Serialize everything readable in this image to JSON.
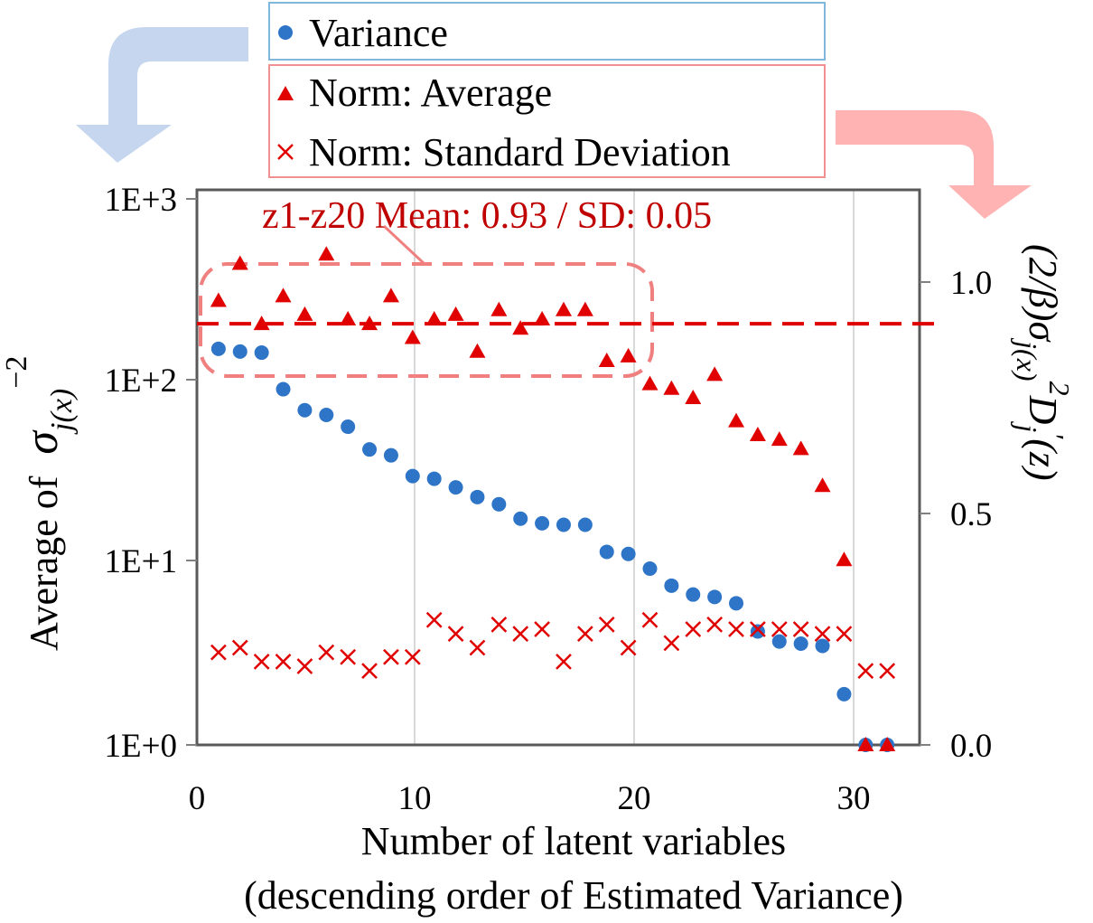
{
  "chart_data": {
    "type": "scatter",
    "xlabel_line1": "Number of latent variables",
    "xlabel_line2": "(descending order of Estimated Variance)",
    "ylabel_left_text": "Average of",
    "ylabel_left_math": "σ_{j(x)}^{-2}",
    "ylabel_right_math": "(2/β)σ_{j(x)}^2 D_j'(z)",
    "xlim": [
      0,
      33.5
    ],
    "x_ticks": [
      0,
      10,
      20,
      30
    ],
    "x_tick_labels": [
      "0",
      "10",
      "20",
      "30"
    ],
    "y_left": {
      "scale": "log",
      "lim": [
        1,
        1000
      ],
      "ticks": [
        1,
        10,
        100,
        1000
      ],
      "tick_labels": [
        "1E+0",
        "1E+1",
        "1E+2",
        "1E+3"
      ]
    },
    "y_right": {
      "scale": "linear",
      "lim": [
        0,
        1.2
      ],
      "ticks": [
        0,
        0.5,
        1.0
      ],
      "tick_labels": [
        "0.0",
        "0.5",
        "1.0"
      ]
    },
    "grid": "vertical",
    "legend": {
      "position": "top",
      "entries": [
        "Variance",
        "Norm: Average",
        "Norm: Standard Deviation"
      ]
    },
    "series": [
      {
        "name": "Variance",
        "axis": "left",
        "marker": "circle",
        "color": "#2e75c8",
        "x": [
          1,
          2,
          3,
          4,
          5,
          6,
          7,
          8,
          9,
          10,
          11,
          12,
          13,
          14,
          15,
          16,
          17,
          18,
          19,
          20,
          21,
          22,
          23,
          24,
          25,
          26,
          27,
          28,
          29,
          30,
          31,
          32
        ],
        "values": [
          150,
          145,
          143,
          90,
          69,
          65,
          56,
          42,
          39,
          30,
          29,
          26,
          23,
          21,
          17.5,
          16.5,
          16.2,
          16.2,
          11.5,
          11.2,
          9.3,
          7.5,
          6.7,
          6.5,
          6,
          4.2,
          3.7,
          3.6,
          3.5,
          1.9,
          1,
          1
        ]
      },
      {
        "name": "Norm: Average",
        "axis": "right",
        "marker": "triangle",
        "color": "#e00000",
        "x": [
          1,
          2,
          3,
          4,
          5,
          6,
          7,
          8,
          9,
          10,
          11,
          12,
          13,
          14,
          15,
          16,
          17,
          18,
          19,
          20,
          21,
          22,
          23,
          24,
          25,
          26,
          27,
          28,
          29,
          30,
          31,
          32
        ],
        "values": [
          0.96,
          1.04,
          0.91,
          0.97,
          0.93,
          1.06,
          0.92,
          0.91,
          0.97,
          0.88,
          0.92,
          0.93,
          0.85,
          0.94,
          0.9,
          0.92,
          0.94,
          0.94,
          0.83,
          0.84,
          0.78,
          0.77,
          0.75,
          0.8,
          0.7,
          0.67,
          0.66,
          0.64,
          0.56,
          0.4,
          0.0,
          0.0
        ]
      },
      {
        "name": "Norm: Standard Deviation",
        "axis": "right",
        "marker": "x",
        "color": "#e00000",
        "x": [
          1,
          2,
          3,
          4,
          5,
          6,
          7,
          8,
          9,
          10,
          11,
          12,
          13,
          14,
          15,
          16,
          17,
          18,
          19,
          20,
          21,
          22,
          23,
          24,
          25,
          26,
          27,
          28,
          29,
          30,
          31,
          32
        ],
        "values": [
          0.2,
          0.21,
          0.18,
          0.18,
          0.17,
          0.2,
          0.19,
          0.16,
          0.19,
          0.19,
          0.27,
          0.24,
          0.21,
          0.26,
          0.24,
          0.25,
          0.18,
          0.24,
          0.26,
          0.21,
          0.27,
          0.22,
          0.25,
          0.26,
          0.25,
          0.25,
          0.25,
          0.25,
          0.24,
          0.24,
          0.16,
          0.16
        ]
      }
    ],
    "reference_line": {
      "axis": "right",
      "value": 0.91,
      "style": "dashed",
      "color": "#e00000"
    },
    "annotation": {
      "text": "z1-z20 Mean: 0.93 / SD: 0.05",
      "color": "#c00000",
      "highlight_range_x": [
        0.5,
        20.5
      ],
      "highlight_color": "#f08080"
    }
  },
  "colors": {
    "legend_blue_border": "#7fb8dc",
    "legend_red_border": "#f09090",
    "arrow_blue": "#c5d6ee",
    "arrow_red": "#ffb3b3"
  }
}
